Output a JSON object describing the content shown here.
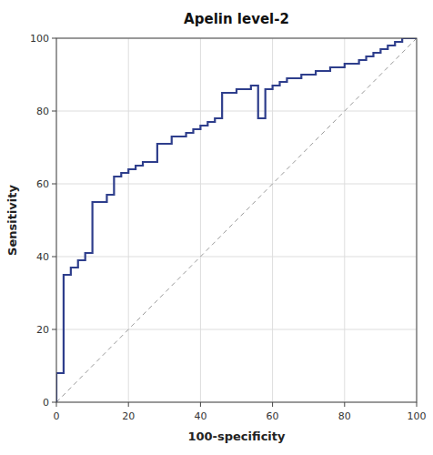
{
  "chart_data": {
    "type": "line",
    "title": "Apelin level-2",
    "xlabel": "100-specificity",
    "ylabel": "Sensitivity",
    "x": [
      0,
      0,
      2,
      2,
      4,
      4,
      6,
      6,
      8,
      8,
      10,
      10,
      14,
      14,
      16,
      16,
      18,
      18,
      20,
      20,
      22,
      22,
      24,
      24,
      28,
      28,
      32,
      32,
      36,
      36,
      38,
      38,
      40,
      40,
      42,
      42,
      44,
      44,
      46,
      46,
      50,
      50,
      54,
      54,
      56,
      56,
      58,
      58,
      60,
      60,
      62,
      62,
      64,
      64,
      68,
      68,
      72,
      72,
      76,
      76,
      80,
      80,
      84,
      84,
      86,
      86,
      88,
      88,
      90,
      90,
      92,
      92,
      94,
      94,
      96,
      96,
      98,
      98,
      100,
      100
    ],
    "series": [
      {
        "color": "#2e3e8c",
        "values": [
          0,
          8,
          8,
          35,
          35,
          37,
          37,
          39,
          39,
          41,
          41,
          55,
          55,
          57,
          57,
          62,
          62,
          63,
          63,
          64,
          64,
          65,
          65,
          66,
          66,
          71,
          71,
          73,
          73,
          74,
          74,
          75,
          75,
          76,
          76,
          77,
          77,
          78,
          78,
          85,
          85,
          86,
          86,
          87,
          87,
          78,
          78,
          86,
          86,
          87,
          87,
          88,
          88,
          89,
          89,
          90,
          90,
          91,
          91,
          92,
          92,
          93,
          93,
          94,
          94,
          95,
          95,
          96,
          96,
          97,
          97,
          98,
          98,
          99,
          99,
          100,
          100,
          100,
          100,
          100
        ]
      }
    ],
    "xlim": [
      0,
      100
    ],
    "ylim": [
      0,
      100
    ],
    "xticks": [
      0,
      20,
      40,
      60,
      80,
      100
    ],
    "yticks": [
      0,
      20,
      40,
      60,
      80,
      100
    ],
    "grid": true
  }
}
